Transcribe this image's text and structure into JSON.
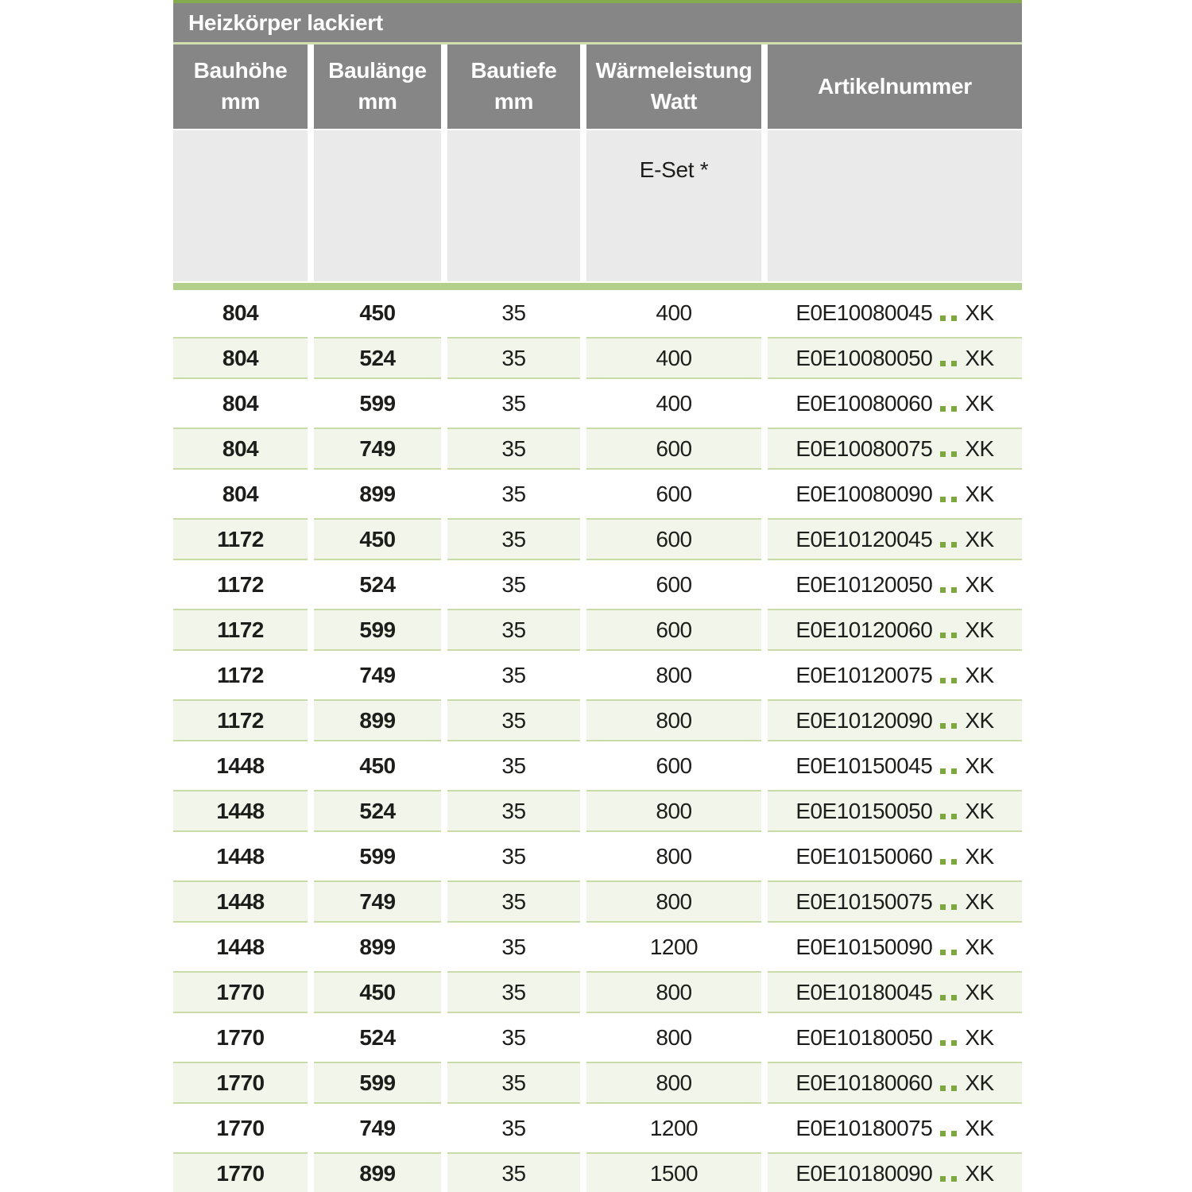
{
  "table": {
    "title": "Heizkörper lackiert",
    "columns": [
      {
        "line1": "Bauhöhe",
        "line2": "mm"
      },
      {
        "line1": "Baulänge",
        "line2": "mm"
      },
      {
        "line1": "Bautiefe",
        "line2": "mm"
      },
      {
        "line1": "Wärmeleistung",
        "line2": "Watt"
      },
      {
        "line1": "Artikelnummer",
        "line2": ""
      }
    ],
    "subheader": {
      "eset_label": "E-Set *"
    },
    "rows": [
      {
        "hoehe": "804",
        "laenge": "450",
        "tiefe": "35",
        "watt": "400",
        "artikel_prefix": "E0E10080045",
        "artikel_suffix": "XK"
      },
      {
        "hoehe": "804",
        "laenge": "524",
        "tiefe": "35",
        "watt": "400",
        "artikel_prefix": "E0E10080050",
        "artikel_suffix": "XK"
      },
      {
        "hoehe": "804",
        "laenge": "599",
        "tiefe": "35",
        "watt": "400",
        "artikel_prefix": "E0E10080060",
        "artikel_suffix": "XK"
      },
      {
        "hoehe": "804",
        "laenge": "749",
        "tiefe": "35",
        "watt": "600",
        "artikel_prefix": "E0E10080075",
        "artikel_suffix": "XK"
      },
      {
        "hoehe": "804",
        "laenge": "899",
        "tiefe": "35",
        "watt": "600",
        "artikel_prefix": "E0E10080090",
        "artikel_suffix": "XK"
      },
      {
        "hoehe": "1172",
        "laenge": "450",
        "tiefe": "35",
        "watt": "600",
        "artikel_prefix": "E0E10120045",
        "artikel_suffix": "XK"
      },
      {
        "hoehe": "1172",
        "laenge": "524",
        "tiefe": "35",
        "watt": "600",
        "artikel_prefix": "E0E10120050",
        "artikel_suffix": "XK"
      },
      {
        "hoehe": "1172",
        "laenge": "599",
        "tiefe": "35",
        "watt": "600",
        "artikel_prefix": "E0E10120060",
        "artikel_suffix": "XK"
      },
      {
        "hoehe": "1172",
        "laenge": "749",
        "tiefe": "35",
        "watt": "800",
        "artikel_prefix": "E0E10120075",
        "artikel_suffix": "XK"
      },
      {
        "hoehe": "1172",
        "laenge": "899",
        "tiefe": "35",
        "watt": "800",
        "artikel_prefix": "E0E10120090",
        "artikel_suffix": "XK"
      },
      {
        "hoehe": "1448",
        "laenge": "450",
        "tiefe": "35",
        "watt": "600",
        "artikel_prefix": "E0E10150045",
        "artikel_suffix": "XK"
      },
      {
        "hoehe": "1448",
        "laenge": "524",
        "tiefe": "35",
        "watt": "800",
        "artikel_prefix": "E0E10150050",
        "artikel_suffix": "XK"
      },
      {
        "hoehe": "1448",
        "laenge": "599",
        "tiefe": "35",
        "watt": "800",
        "artikel_prefix": "E0E10150060",
        "artikel_suffix": "XK"
      },
      {
        "hoehe": "1448",
        "laenge": "749",
        "tiefe": "35",
        "watt": "800",
        "artikel_prefix": "E0E10150075",
        "artikel_suffix": "XK"
      },
      {
        "hoehe": "1448",
        "laenge": "899",
        "tiefe": "35",
        "watt": "1200",
        "artikel_prefix": "E0E10150090",
        "artikel_suffix": "XK"
      },
      {
        "hoehe": "1770",
        "laenge": "450",
        "tiefe": "35",
        "watt": "800",
        "artikel_prefix": "E0E10180045",
        "artikel_suffix": "XK"
      },
      {
        "hoehe": "1770",
        "laenge": "524",
        "tiefe": "35",
        "watt": "800",
        "artikel_prefix": "E0E10180050",
        "artikel_suffix": "XK"
      },
      {
        "hoehe": "1770",
        "laenge": "599",
        "tiefe": "35",
        "watt": "800",
        "artikel_prefix": "E0E10180060",
        "artikel_suffix": "XK"
      },
      {
        "hoehe": "1770",
        "laenge": "749",
        "tiefe": "35",
        "watt": "1200",
        "artikel_prefix": "E0E10180075",
        "artikel_suffix": "XK"
      },
      {
        "hoehe": "1770",
        "laenge": "899",
        "tiefe": "35",
        "watt": "1500",
        "artikel_prefix": "E0E10180090",
        "artikel_suffix": "XK"
      }
    ]
  },
  "colors": {
    "header_gray": "#868686",
    "subheader_gray": "#eaeaea",
    "text_dark": "#1d1d1b",
    "accent_green_top_strip": "#86ab4f",
    "accent_green_title_separator": "#cfdfae",
    "accent_green_section_bar": "#b3cf8c",
    "row_green_background": "#f2f6ea",
    "row_green_border": "#c9dca8",
    "dot_green": "#7ca83d"
  }
}
